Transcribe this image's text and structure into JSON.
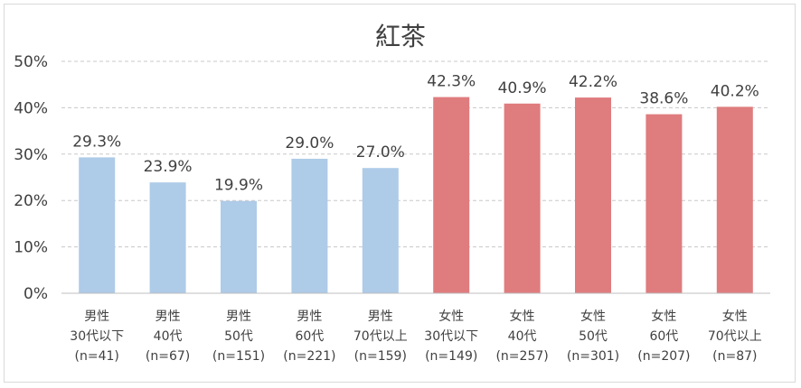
{
  "chart_data": {
    "type": "bar",
    "title": "紅茶",
    "xlabel": "",
    "ylabel": "",
    "ylim": [
      0,
      50
    ],
    "yticks": [
      "0%",
      "10%",
      "20%",
      "30%",
      "40%",
      "50%"
    ],
    "grid": true,
    "categories": [
      [
        "男性",
        "30代以下",
        "(n=41)"
      ],
      [
        "男性",
        "40代",
        "(n=67)"
      ],
      [
        "男性",
        "50代",
        "(n=151)"
      ],
      [
        "男性",
        "60代",
        "(n=221)"
      ],
      [
        "男性",
        "70代以上",
        "(n=159)"
      ],
      [
        "女性",
        "30代以下",
        "(n=149)"
      ],
      [
        "女性",
        "40代",
        "(n=257)"
      ],
      [
        "女性",
        "50代",
        "(n=301)"
      ],
      [
        "女性",
        "60代",
        "(n=207)"
      ],
      [
        "女性",
        "70代以上",
        "(n=87)"
      ]
    ],
    "values": [
      29.3,
      23.9,
      19.9,
      29.0,
      27.0,
      42.3,
      40.9,
      42.2,
      38.6,
      40.2
    ],
    "value_labels": [
      "29.3%",
      "23.9%",
      "19.9%",
      "29.0%",
      "27.0%",
      "42.3%",
      "40.9%",
      "42.2%",
      "38.6%",
      "40.2%"
    ],
    "bar_colors": [
      "#aecbe8",
      "#aecbe8",
      "#aecbe8",
      "#aecbe8",
      "#aecbe8",
      "#df7c7e",
      "#df7c7e",
      "#df7c7e",
      "#df7c7e",
      "#df7c7e"
    ]
  }
}
